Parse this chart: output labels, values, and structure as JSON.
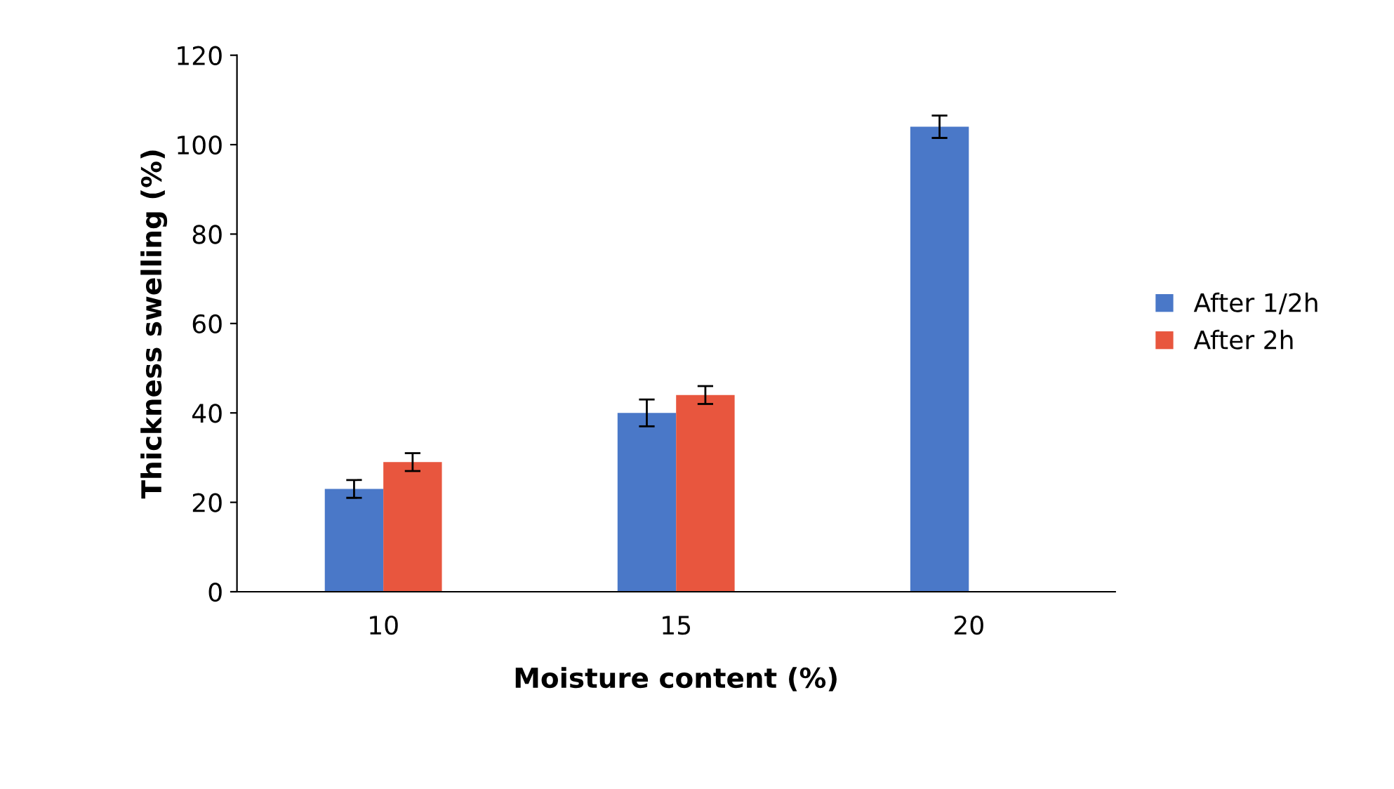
{
  "chart_data": {
    "type": "bar",
    "xlabel": "Moisture content (%)",
    "ylabel": "Thickness swelling (%)",
    "categories": [
      "10",
      "15",
      "20"
    ],
    "series": [
      {
        "name": "After 1/2h",
        "color": "#4a78c8",
        "values": [
          23,
          40,
          104
        ],
        "errors": [
          2,
          3,
          2.5
        ]
      },
      {
        "name": "After 2h",
        "color": "#e8563e",
        "values": [
          29,
          44,
          null
        ],
        "errors": [
          2,
          2,
          null
        ]
      }
    ],
    "ylim": [
      0,
      120
    ],
    "yticks": [
      0,
      20,
      40,
      60,
      80,
      100,
      120
    ],
    "grid": false,
    "legend": "right"
  }
}
